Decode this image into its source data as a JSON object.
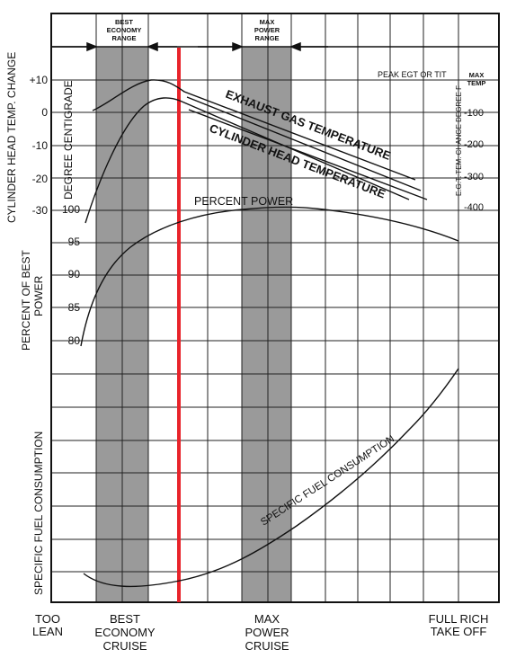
{
  "chart_data": {
    "type": "line",
    "title": "",
    "x_labels": {
      "too_lean": [
        "TOO",
        "LEAN"
      ],
      "best_economy": [
        "BEST",
        "ECONOMY",
        "CRUISE"
      ],
      "max_power": [
        "MAX",
        "POWER",
        "CRUISE"
      ],
      "full_rich": [
        "FULL RICH",
        "TAKE OFF"
      ]
    },
    "ranges": {
      "best_economy_range": [
        "BEST",
        "ECONOMY",
        "RANGE"
      ],
      "max_power_range": [
        "MAX",
        "POWER",
        "RANGE"
      ]
    },
    "left_axis_titles": {
      "cht_change": "CYLINDER HEAD TEMP. CHANGE",
      "degree_centigrade": "DEGREE CENTIGRADE",
      "percent_best_power": [
        "PERCENT OF BEST",
        "POWER"
      ],
      "specific_fuel_consumption": "SPECIFIC FUEL CONSUMPTION"
    },
    "cht_ticks": [
      "+10",
      "0",
      "-10",
      "-20",
      "-30"
    ],
    "power_ticks": [
      "100",
      "95",
      "90",
      "85",
      "80"
    ],
    "right_axis": {
      "title": "E.G.T. TEM. CHANGE DEGREE F",
      "max_temp": [
        "MAX",
        "TEMP"
      ],
      "ticks": [
        "-100",
        "-200",
        "-300",
        "-400"
      ],
      "peak_label": "PEAK EGT OR TIT"
    },
    "series": [
      {
        "name": "EXHAUST GAS TEMPERATURE"
      },
      {
        "name": "CYLINDER HEAD TEMPERATURE"
      },
      {
        "name": "PERCENT POWER"
      },
      {
        "name": "SPECIFIC FUEL CONSUMPTION"
      }
    ],
    "highlight_color": "#e8232a",
    "band_color": "#9a9a9a"
  }
}
